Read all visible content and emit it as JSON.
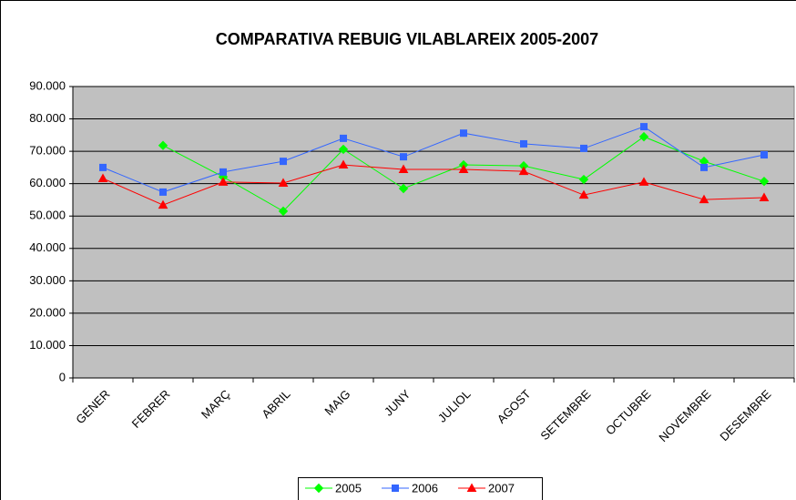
{
  "chart_data": {
    "type": "line",
    "title": "COMPARATIVA REBUIG VILABLAREIX 2005-2007",
    "categories": [
      "GENER",
      "FEBRER",
      "MARÇ",
      "ABRIL",
      "MAIG",
      "JUNY",
      "JULIOL",
      "AGOST",
      "SETEMBRE",
      "OCTUBRE",
      "NOVEMBRE",
      "DESEMBRE"
    ],
    "series": [
      {
        "name": "2005",
        "color": "#00ff00",
        "marker": "diamond",
        "values": [
          null,
          71800,
          62100,
          51500,
          70600,
          58500,
          65800,
          65500,
          61300,
          74500,
          66900,
          60700
        ]
      },
      {
        "name": "2006",
        "color": "#3366ff",
        "marker": "square",
        "values": [
          65000,
          57400,
          63600,
          66900,
          74000,
          68300,
          75600,
          72300,
          70900,
          77600,
          65000,
          68900
        ]
      },
      {
        "name": "2007",
        "color": "#ff0000",
        "marker": "triangle",
        "values": [
          61600,
          53400,
          60500,
          60200,
          65800,
          64400,
          64400,
          63800,
          56500,
          60500,
          55100,
          55700
        ]
      }
    ],
    "ylim": [
      0,
      90000
    ],
    "yticks": [
      0,
      {
        "value": 10000,
        "label": "10.000"
      },
      {
        "value": 20000,
        "label": "20.000"
      },
      {
        "value": 30000,
        "label": "30.000"
      },
      {
        "value": 40000,
        "label": "40.000"
      },
      {
        "value": 50000,
        "label": "50.000"
      },
      {
        "value": 60000,
        "label": "60.000"
      },
      {
        "value": 70000,
        "label": "70.000"
      },
      {
        "value": 80000,
        "label": "80.000"
      },
      {
        "value": 90000,
        "label": "90.000"
      }
    ],
    "grid": true,
    "legend": "bottom",
    "plot_background": "#c0c0c0"
  }
}
